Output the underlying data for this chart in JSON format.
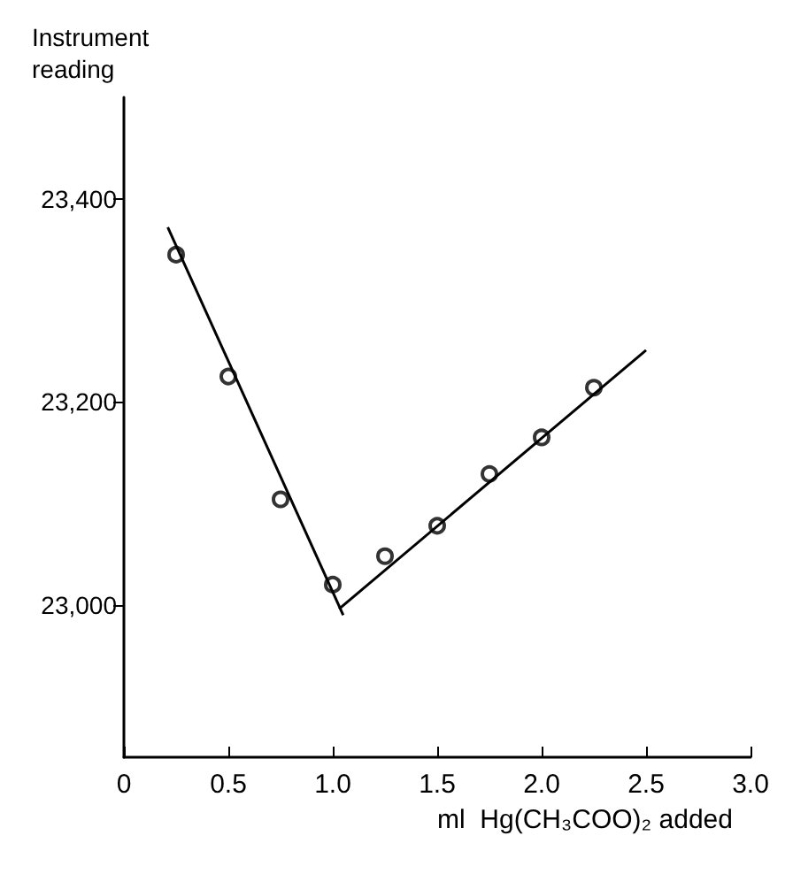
{
  "chart_data": {
    "type": "scatter",
    "xlabel": "ml  Hg(CH₃COO)₂ added",
    "ylabel": "Instrument reading",
    "xlim": [
      0,
      3
    ],
    "xticks": [
      0,
      0.5,
      {
        "value": 1,
        "label": "1.0"
      },
      1.5,
      {
        "value": 2,
        "label": "2.0"
      },
      2.5,
      {
        "value": 3,
        "label": "3.0"
      }
    ],
    "ylim": [
      22850,
      23500
    ],
    "yticks": [
      {
        "value": 23000,
        "label": "23,000"
      },
      {
        "value": 23200,
        "label": "23,200"
      },
      {
        "value": 23400,
        "label": "23,400"
      }
    ],
    "grid": false,
    "marker": "circle",
    "series": [
      {
        "color": "#000000",
        "x": [
          0.25,
          0.5,
          0.75,
          1,
          1.25,
          1.5,
          1.75,
          2,
          2.25
        ],
        "values": [
          23345,
          23225,
          23104,
          23020,
          23048,
          23078,
          23129,
          23165,
          23214
        ]
      },
      {
        "type": "line",
        "marker": "none",
        "color": "#000000",
        "x": [
          0.21,
          1.05
        ],
        "values": [
          23372,
          22990
        ]
      },
      {
        "type": "line",
        "marker": "none",
        "color": "#000000",
        "x": [
          1.03,
          2.5
        ],
        "values": [
          22996,
          23251
        ]
      }
    ]
  }
}
